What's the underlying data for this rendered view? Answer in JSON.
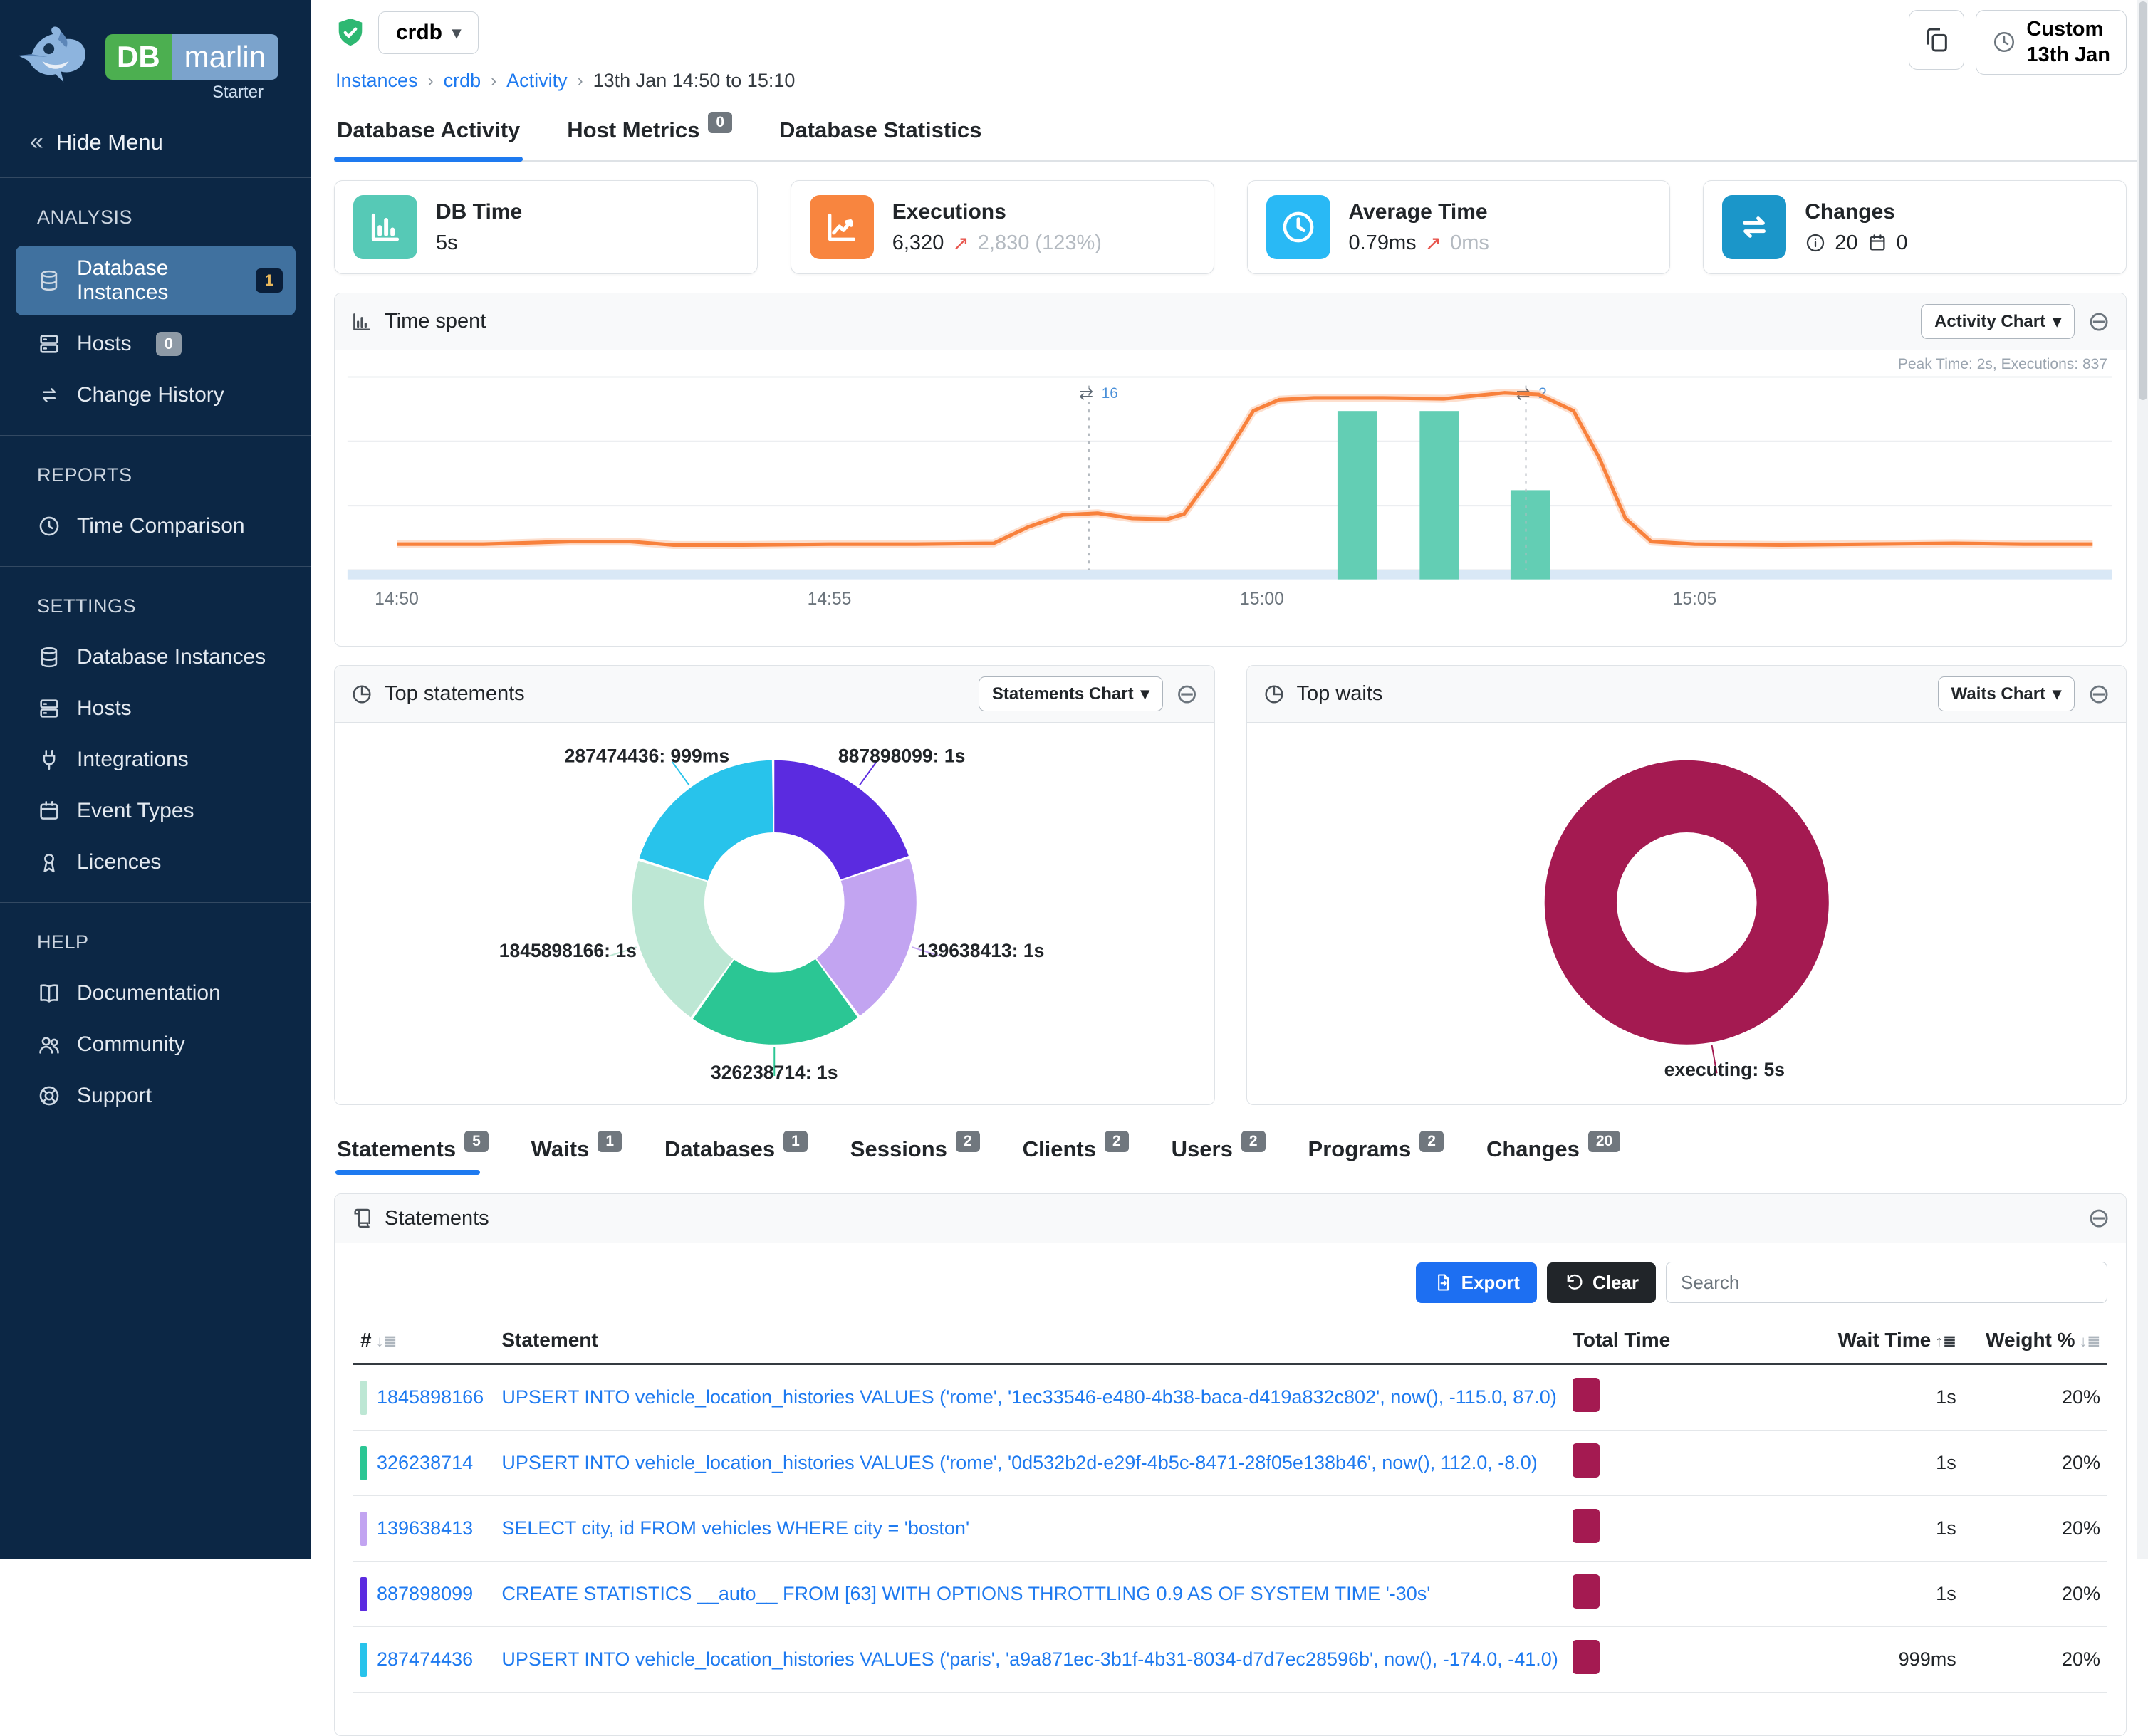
{
  "app": {
    "brand_db": "DB",
    "brand_marlin": "marlin",
    "edition": "Starter"
  },
  "sidebar": {
    "hide_menu_label": "Hide Menu",
    "sections": [
      {
        "title": "ANALYSIS",
        "items": [
          {
            "name": "database-instances",
            "icon": "database",
            "label": "Database Instances",
            "badge": "1",
            "badge_style": "navy",
            "active": true
          },
          {
            "name": "hosts",
            "icon": "server",
            "label": "Hosts",
            "badge": "0",
            "badge_style": "gray"
          },
          {
            "name": "change-history",
            "icon": "swap",
            "label": "Change History"
          }
        ]
      },
      {
        "title": "REPORTS",
        "items": [
          {
            "name": "time-comparison",
            "icon": "clock",
            "label": "Time Comparison"
          }
        ]
      },
      {
        "title": "SETTINGS",
        "items": [
          {
            "name": "settings-database-instances",
            "icon": "database",
            "label": "Database Instances"
          },
          {
            "name": "settings-hosts",
            "icon": "server",
            "label": "Hosts"
          },
          {
            "name": "integrations",
            "icon": "plug",
            "label": "Integrations"
          },
          {
            "name": "event-types",
            "icon": "event",
            "label": "Event Types"
          },
          {
            "name": "licences",
            "icon": "licence",
            "label": "Licences"
          }
        ]
      },
      {
        "title": "HELP",
        "items": [
          {
            "name": "documentation",
            "icon": "book",
            "label": "Documentation"
          },
          {
            "name": "community",
            "icon": "users",
            "label": "Community"
          },
          {
            "name": "support",
            "icon": "support",
            "label": "Support"
          }
        ]
      }
    ]
  },
  "header": {
    "instance": "crdb",
    "breadcrumb": [
      "Instances",
      "crdb",
      "Activity",
      "13th Jan 14:50 to 15:10"
    ],
    "custom_line1": "Custom",
    "custom_line2": "13th Jan"
  },
  "main_tabs": [
    {
      "label": "Database Activity",
      "active": true
    },
    {
      "label": "Host Metrics",
      "badge": "0"
    },
    {
      "label": "Database Statistics"
    }
  ],
  "kpis": [
    {
      "title": "DB Time",
      "value": "5s",
      "icon": "kpi-bar",
      "color": "#56c9b6"
    },
    {
      "title": "Executions",
      "value": "6,320",
      "delta": "2,830 (123%)",
      "icon": "kpi-line",
      "color": "#f8853f"
    },
    {
      "title": "Average Time",
      "value": "0.79ms",
      "delta": "0ms",
      "icon": "kpi-clock",
      "color": "#29b9f5"
    },
    {
      "title": "Changes",
      "counts": [
        {
          "icon": "info",
          "value": "20"
        },
        {
          "icon": "calendar",
          "value": "0"
        }
      ],
      "icon": "kpi-swap",
      "color": "#1b96c9"
    }
  ],
  "panels": {
    "time_spent": {
      "title": "Time spent",
      "button": "Activity Chart",
      "annotation": "Peak Time: 2s, Executions: 837"
    },
    "top_statements": {
      "title": "Top statements",
      "button": "Statements Chart"
    },
    "top_waits": {
      "title": "Top waits",
      "button": "Waits Chart"
    },
    "statements": {
      "title": "Statements"
    }
  },
  "detail_tabs": [
    {
      "label": "Statements",
      "badge": "5",
      "active": true
    },
    {
      "label": "Waits",
      "badge": "1"
    },
    {
      "label": "Databases",
      "badge": "1"
    },
    {
      "label": "Sessions",
      "badge": "2"
    },
    {
      "label": "Clients",
      "badge": "2"
    },
    {
      "label": "Users",
      "badge": "2"
    },
    {
      "label": "Programs",
      "badge": "2"
    },
    {
      "label": "Changes",
      "badge": "20"
    }
  ],
  "toolbar": {
    "export_label": "Export",
    "clear_label": "Clear",
    "search_placeholder": "Search"
  },
  "table": {
    "headers": [
      "#",
      "Statement",
      "Total Time",
      "Wait Time",
      "Weight %"
    ],
    "rows": [
      {
        "id": "1845898166",
        "color": "#bde7d4",
        "statement": "UPSERT INTO vehicle_location_histories VALUES ('rome', '1ec33546-e480-4b38-baca-d419a832c802', now(), -115.0, 87.0)",
        "total_ms": 1000,
        "wait_time": "1s",
        "weight": "20%"
      },
      {
        "id": "326238714",
        "color": "#2bc694",
        "statement": "UPSERT INTO vehicle_location_histories VALUES ('rome', '0d532b2d-e29f-4b5c-8471-28f05e138b46', now(), 112.0, -8.0)",
        "total_ms": 1000,
        "wait_time": "1s",
        "weight": "20%"
      },
      {
        "id": "139638413",
        "color": "#c2a4f1",
        "statement": "SELECT city, id FROM vehicles WHERE city = 'boston'",
        "total_ms": 1000,
        "wait_time": "1s",
        "weight": "20%"
      },
      {
        "id": "887898099",
        "color": "#5b2be0",
        "statement": "CREATE STATISTICS __auto__ FROM [63] WITH OPTIONS THROTTLING 0.9 AS OF SYSTEM TIME '-30s'",
        "total_ms": 1000,
        "wait_time": "1s",
        "weight": "20%"
      },
      {
        "id": "287474436",
        "color": "#28c3eb",
        "statement": "UPSERT INTO vehicle_location_histories VALUES ('paris', 'a9a871ec-3b1f-4b31-8034-d7d7ec28596b', now(), -174.0, -41.0)",
        "total_ms": 999,
        "wait_time": "999ms",
        "weight": "20%"
      }
    ]
  },
  "chart_data": [
    {
      "name": "time_spent",
      "type": "line+bar",
      "title": "Time spent",
      "annotation": "Peak Time: 2s, Executions: 837",
      "x_ticks": [
        {
          "label": "14:50",
          "minute": 0
        },
        {
          "label": "14:55",
          "minute": 5
        },
        {
          "label": "15:00",
          "minute": 10
        },
        {
          "label": "15:05",
          "minute": 15
        }
      ],
      "y_unit": "seconds",
      "line": {
        "name": "DB Time",
        "color": "#f8813c",
        "points": [
          [
            0,
            0.3
          ],
          [
            1,
            0.3
          ],
          [
            2,
            0.33
          ],
          [
            2.7,
            0.33
          ],
          [
            3.2,
            0.29
          ],
          [
            4,
            0.29
          ],
          [
            5,
            0.3
          ],
          [
            6,
            0.3
          ],
          [
            6.9,
            0.31
          ],
          [
            7.3,
            0.5
          ],
          [
            7.7,
            0.64
          ],
          [
            8.1,
            0.66
          ],
          [
            8.5,
            0.6
          ],
          [
            8.9,
            0.59
          ],
          [
            9.1,
            0.65
          ],
          [
            9.5,
            1.2
          ],
          [
            9.9,
            1.85
          ],
          [
            10.2,
            1.98
          ],
          [
            10.6,
            2.0
          ],
          [
            11.4,
            2.0
          ],
          [
            12.1,
            1.99
          ],
          [
            12.8,
            2.06
          ],
          [
            13.2,
            2.04
          ],
          [
            13.6,
            1.85
          ],
          [
            13.9,
            1.3
          ],
          [
            14.2,
            0.6
          ],
          [
            14.5,
            0.33
          ],
          [
            15,
            0.3
          ],
          [
            16,
            0.29
          ],
          [
            17,
            0.3
          ],
          [
            18,
            0.31
          ],
          [
            18.8,
            0.3
          ],
          [
            19.6,
            0.3
          ]
        ]
      },
      "bars": {
        "name": "Executions",
        "color": "#63ceb4",
        "max": 837,
        "items": [
          {
            "minute": 11.1,
            "value": 837
          },
          {
            "minute": 12.05,
            "value": 837
          },
          {
            "minute": 13.1,
            "value": 420
          }
        ]
      },
      "events": [
        {
          "minute": 8,
          "label": "16"
        },
        {
          "minute": 13.05,
          "label": "2"
        }
      ]
    },
    {
      "name": "top_statements",
      "type": "donut",
      "title": "Top statements",
      "slices": [
        {
          "label": "887898099",
          "value": "1s",
          "frac": 0.2,
          "color": "#5b2be0"
        },
        {
          "label": "139638413",
          "value": "1s",
          "frac": 0.2,
          "color": "#c2a4f1"
        },
        {
          "label": "326238714",
          "value": "1s",
          "frac": 0.2,
          "color": "#2bc694"
        },
        {
          "label": "1845898166",
          "value": "1s",
          "frac": 0.2,
          "color": "#bde7d4"
        },
        {
          "label": "287474436",
          "value": "999ms",
          "frac": 0.2,
          "color": "#28c3eb"
        }
      ]
    },
    {
      "name": "top_waits",
      "type": "donut",
      "title": "Top waits",
      "slices": [
        {
          "label": "executing",
          "value": "5s",
          "frac": 1.0,
          "color": "#a41a51"
        }
      ]
    }
  ]
}
